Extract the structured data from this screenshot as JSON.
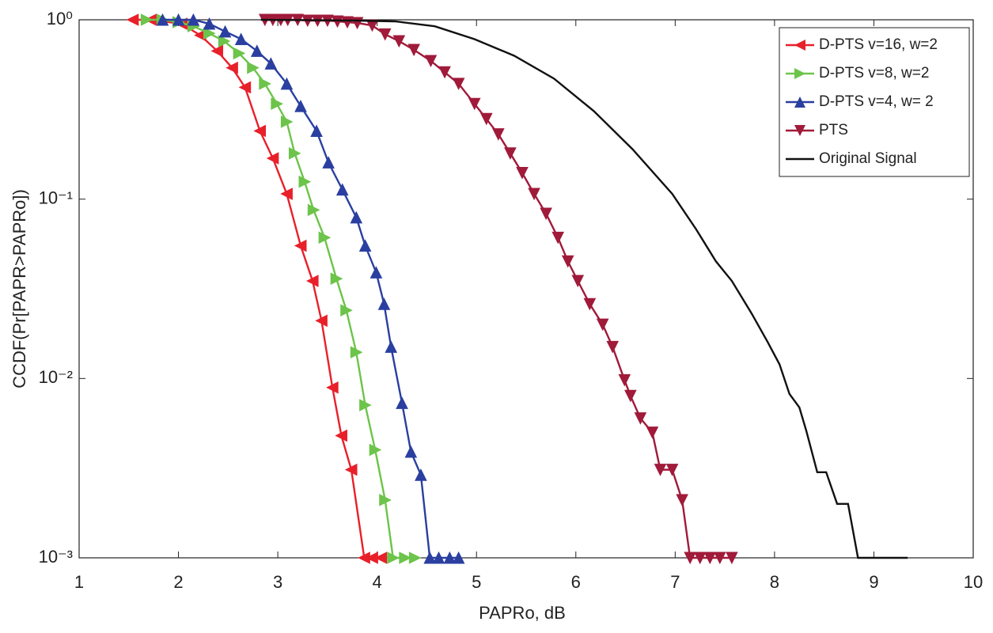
{
  "chart_data": {
    "type": "line",
    "xlabel": "PAPRo, dB",
    "ylabel": "CCDF(Pr[PAPR>PAPRo])",
    "xlim": [
      1,
      10
    ],
    "xticks": [
      1,
      2,
      3,
      4,
      5,
      6,
      7,
      8,
      9,
      10
    ],
    "ylim": [
      0.001,
      1
    ],
    "yscale": "log",
    "yticks": [
      {
        "value": 1,
        "label": "10⁰"
      },
      {
        "value": 0.1,
        "label": "10⁻¹"
      },
      {
        "value": 0.01,
        "label": "10⁻²"
      },
      {
        "value": 0.001,
        "label": "10⁻³"
      }
    ],
    "grid": false,
    "legend": "upper right",
    "series": [
      {
        "name": "D-PTS v=16, w=2",
        "color": "#e8202a",
        "marker": "<",
        "x": [
          1.54,
          1.72,
          2.03,
          2.22,
          2.39,
          2.54,
          2.67,
          2.82,
          2.95,
          3.09,
          3.23,
          3.35,
          3.44,
          3.55,
          3.64,
          3.74,
          3.87,
          3.95,
          4.04
        ],
        "values": [
          1,
          1,
          0.95,
          0.82,
          0.67,
          0.54,
          0.42,
          0.24,
          0.169,
          0.107,
          0.055,
          0.035,
          0.021,
          0.0089,
          0.0048,
          0.0031,
          0.001,
          0.001,
          0.001
        ]
      },
      {
        "name": "D-PTS v=8, w=2",
        "color": "#6cc44a",
        "marker": ">",
        "x": [
          1.68,
          1.84,
          2.0,
          2.15,
          2.31,
          2.46,
          2.61,
          2.75,
          2.87,
          2.99,
          3.09,
          3.17,
          3.27,
          3.36,
          3.47,
          3.59,
          3.69,
          3.79,
          3.88,
          3.98,
          4.08,
          4.16,
          4.28,
          4.38
        ],
        "values": [
          1,
          1,
          0.97,
          0.92,
          0.84,
          0.76,
          0.65,
          0.54,
          0.44,
          0.34,
          0.27,
          0.18,
          0.125,
          0.087,
          0.061,
          0.036,
          0.024,
          0.014,
          0.0071,
          0.004,
          0.0021,
          0.001,
          0.001,
          0.001
        ]
      },
      {
        "name": "D-PTS v=4, w= 2",
        "color": "#2a3fa0",
        "marker": "^",
        "x": [
          1.84,
          2.0,
          2.15,
          2.31,
          2.47,
          2.63,
          2.79,
          2.93,
          3.09,
          3.23,
          3.39,
          3.51,
          3.65,
          3.79,
          3.88,
          3.99,
          4.07,
          4.14,
          4.25,
          4.34,
          4.44,
          4.53,
          4.62,
          4.73,
          4.82
        ],
        "values": [
          1,
          1,
          1,
          0.95,
          0.86,
          0.78,
          0.67,
          0.57,
          0.44,
          0.33,
          0.24,
          0.16,
          0.113,
          0.079,
          0.055,
          0.039,
          0.026,
          0.015,
          0.0073,
          0.0039,
          0.0029,
          0.001,
          0.001,
          0.001,
          0.001
        ]
      },
      {
        "name": "PTS",
        "color": "#a01a3a",
        "marker": "v",
        "x": [
          2.87,
          2.95,
          3.03,
          3.1,
          3.2,
          3.3,
          3.4,
          3.5,
          3.6,
          3.7,
          3.8,
          3.95,
          4.08,
          4.22,
          4.37,
          4.54,
          4.68,
          4.82,
          4.98,
          5.1,
          5.22,
          5.34,
          5.46,
          5.58,
          5.7,
          5.82,
          5.92,
          6.02,
          6.14,
          6.27,
          6.37,
          6.49,
          6.55,
          6.65,
          6.77,
          6.85,
          6.97,
          7.07,
          7.15,
          7.25,
          7.35,
          7.45,
          7.57
        ],
        "values": [
          1,
          1,
          1,
          1,
          1,
          0.99,
          0.99,
          0.99,
          0.98,
          0.97,
          0.96,
          0.93,
          0.83,
          0.76,
          0.68,
          0.59,
          0.51,
          0.44,
          0.34,
          0.28,
          0.23,
          0.18,
          0.14,
          0.107,
          0.083,
          0.061,
          0.045,
          0.035,
          0.026,
          0.02,
          0.015,
          0.0098,
          0.008,
          0.006,
          0.005,
          0.0031,
          0.0031,
          0.0021,
          0.001,
          0.001,
          0.001,
          0.001,
          0.001
        ]
      },
      {
        "name": "Original Signal",
        "color": "#111111",
        "marker": null,
        "x": [
          2.83,
          3.79,
          4.18,
          4.58,
          4.98,
          5.38,
          5.78,
          6.18,
          6.57,
          6.97,
          7.21,
          7.41,
          7.57,
          7.77,
          7.93,
          8.05,
          8.15,
          8.25,
          8.32,
          8.43,
          8.52,
          8.63,
          8.74,
          8.84,
          9.08,
          9.34
        ],
        "values": [
          1,
          0.99,
          0.98,
          0.92,
          0.78,
          0.63,
          0.47,
          0.31,
          0.19,
          0.107,
          0.068,
          0.045,
          0.035,
          0.023,
          0.016,
          0.012,
          0.0082,
          0.0069,
          0.0051,
          0.003,
          0.003,
          0.002,
          0.002,
          0.001,
          0.001,
          0.001
        ]
      }
    ]
  }
}
